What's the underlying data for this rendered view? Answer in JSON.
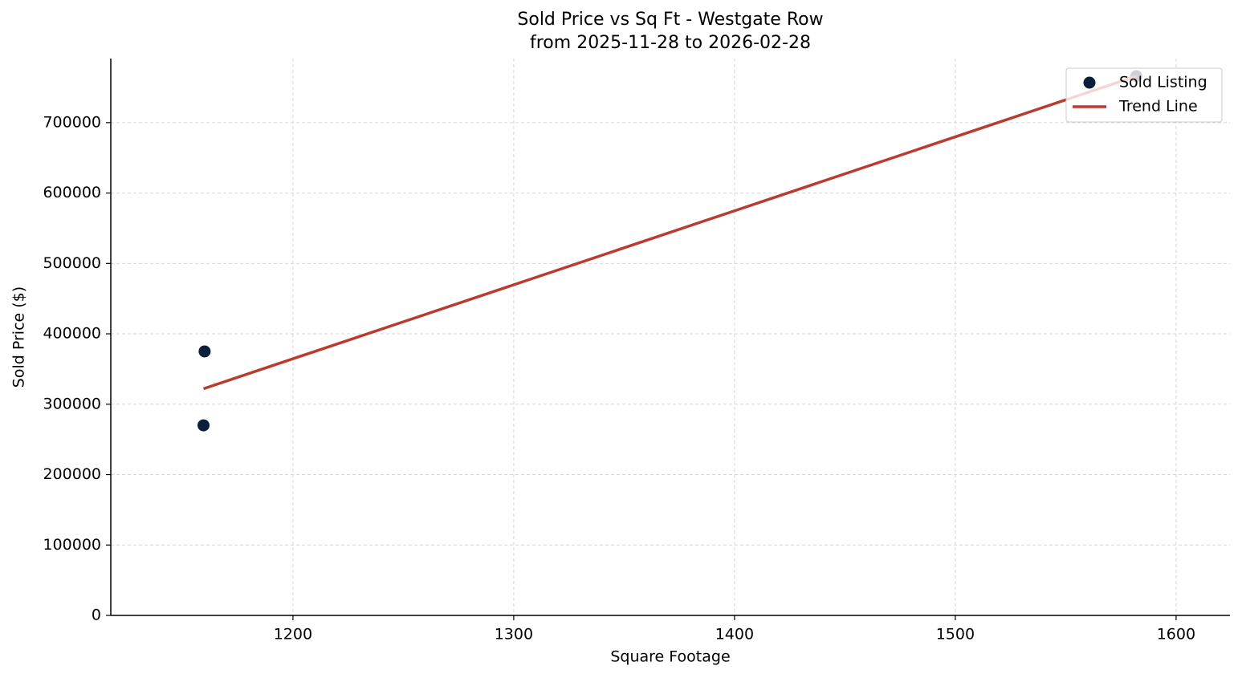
{
  "chart_data": {
    "type": "scatter",
    "title": "Sold Price vs Sq Ft - Westgate Row",
    "subtitle": "from 2025-11-28 to 2026-02-28",
    "x_label": "Square Footage",
    "y_label": "Sold Price ($)",
    "series": [
      {
        "name": "Sold Listing",
        "type": "scatter",
        "color": "#0b1f3a",
        "x": [
          1160,
          1159.5,
          1582
        ],
        "values": [
          375000,
          270000,
          766000
        ]
      },
      {
        "name": "Trend Line",
        "type": "line",
        "color": "#b83c30",
        "x": [
          1159.5,
          1582
        ],
        "values": [
          322000,
          766000
        ]
      }
    ],
    "xlim": [
      1117.5,
      1624.4
    ],
    "xticks": [
      1200,
      1300,
      1400,
      1500,
      1600
    ],
    "ylim": [
      0,
      791000
    ],
    "yticks": [
      0,
      100000,
      200000,
      300000,
      400000,
      500000,
      600000,
      700000
    ],
    "grid": true,
    "legend": "upper right"
  }
}
